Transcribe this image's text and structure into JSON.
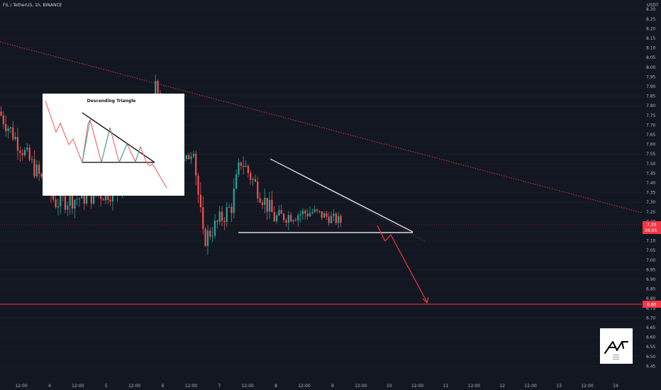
{
  "header": {
    "symbol": "FIL / TetherUS, 1h, BINANCE"
  },
  "colors": {
    "background": "#131722",
    "up": "#26a69a",
    "down": "#ef5350",
    "pattern_line": "#ffffff",
    "arrow": "#f23645",
    "target_line": "#f23645",
    "trendline": "#e53935"
  },
  "chart_data": {
    "type": "candlestick",
    "title": "FIL / TetherUS, 1h, BINANCE",
    "y_axis": {
      "unit": "USDT",
      "ticks": [
        "8.30",
        "8.25",
        "8.20",
        "8.15",
        "8.10",
        "8.05",
        "8.00",
        "7.95",
        "7.90",
        "7.85",
        "7.80",
        "7.75",
        "7.70",
        "7.65",
        "7.60",
        "7.55",
        "7.50",
        "7.45",
        "7.40",
        "7.35",
        "7.30",
        "7.25",
        "7.20",
        "7.15",
        "7.10",
        "7.05",
        "7.00",
        "6.95",
        "6.90",
        "6.85",
        "6.80",
        "6.75",
        "6.70",
        "6.65",
        "6.60",
        "6.55",
        "6.50",
        "6.45"
      ],
      "range": [
        6.43,
        8.33
      ]
    },
    "x_axis": {
      "ticks": [
        "12:00",
        "4",
        "12:00",
        "5",
        "12:00",
        "6",
        "12:00",
        "7",
        "12:00",
        "8",
        "12:00",
        "9",
        "12:00",
        "10",
        "12:00",
        "11",
        "12:00",
        "12",
        "12:00",
        "13",
        "12:00",
        "14"
      ]
    },
    "price_labels": {
      "current_price": "7.20",
      "countdown": "26:05",
      "target_price": "6.80"
    },
    "target_level": 6.8,
    "annotations": {
      "inset_title": "Descending Triangle",
      "pattern": "descending triangle",
      "projection": "breakdown arrow to 6.80"
    },
    "series": [
      {
        "segments": [
          {
            "from": 7.77,
            "to": 7.3,
            "bars": 24,
            "amp": 0.05
          },
          {
            "from": 7.3,
            "to": 7.36,
            "bars": 26,
            "amp": 0.05
          },
          {
            "from": 7.36,
            "to": 7.88,
            "bars": 16,
            "amp": 0.05
          },
          {
            "from": 7.88,
            "to": 7.5,
            "bars": 12,
            "amp": 0.05
          },
          {
            "from": 7.5,
            "to": 7.58,
            "bars": 4,
            "amp": 0.03
          },
          {
            "from": 7.58,
            "to": 7.1,
            "bars": 4,
            "amp": 0.07
          },
          {
            "from": 7.1,
            "to": 7.28,
            "bars": 12,
            "amp": 0.05
          },
          {
            "from": 7.28,
            "to": 7.52,
            "bars": 4,
            "amp": 0.06
          },
          {
            "from": 7.52,
            "to": 7.22,
            "bars": 14,
            "amp": 0.05
          },
          {
            "from": 7.22,
            "to": 7.25,
            "bars": 16,
            "amp": 0.04
          },
          {
            "from": 7.25,
            "to": 7.2,
            "bars": 12,
            "amp": 0.03
          }
        ]
      }
    ]
  },
  "badge": {
    "name": "AJ"
  }
}
